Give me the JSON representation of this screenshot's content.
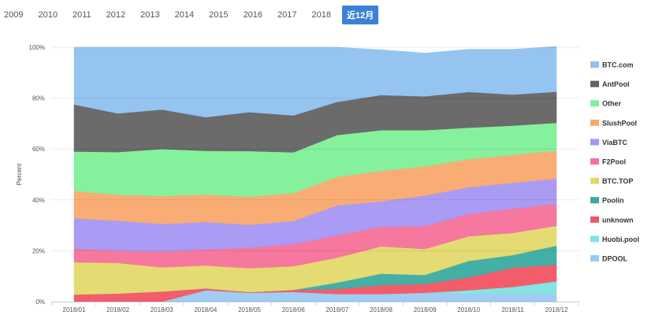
{
  "year_tabs": [
    "2009",
    "2010",
    "2011",
    "2012",
    "2013",
    "2014",
    "2015",
    "2016",
    "2017",
    "2018",
    "近12月"
  ],
  "active_tab": "近12月",
  "chart_data": {
    "type": "area",
    "stacked": true,
    "title": "",
    "xlabel": "",
    "ylabel": "Percent",
    "ylim": [
      0,
      100
    ],
    "yticks": [
      "0%",
      "20%",
      "40%",
      "60%",
      "80%",
      "100%"
    ],
    "categories": [
      "2018/01",
      "2018/02",
      "2018/03",
      "2018/04",
      "2018/05",
      "2018/06",
      "2018/07",
      "2018/08",
      "2018/09",
      "2018/10",
      "2018/11",
      "2018/12"
    ],
    "legend_position": "right",
    "series": [
      {
        "name": "BTC.com",
        "color": "#90c1f0",
        "values": [
          22.5,
          26.0,
          24.5,
          27.5,
          25.5,
          26.8,
          21.5,
          17.8,
          17.0,
          16.8,
          17.8,
          17.8
        ]
      },
      {
        "name": "AntPool",
        "color": "#636363",
        "values": [
          18.5,
          15.2,
          15.5,
          13.2,
          15.3,
          14.5,
          13.0,
          13.8,
          13.3,
          14.0,
          12.2,
          12.2
        ]
      },
      {
        "name": "Other",
        "color": "#7ef098",
        "values": [
          15.5,
          16.8,
          18.5,
          17.2,
          18.0,
          16.0,
          16.5,
          16.0,
          14.2,
          12.4,
          11.5,
          11.0
        ]
      },
      {
        "name": "SlushPool",
        "color": "#f9a96e",
        "values": [
          10.7,
          10.2,
          11.0,
          10.8,
          11.0,
          11.0,
          11.2,
          12.0,
          11.5,
          11.0,
          11.0,
          11.0
        ]
      },
      {
        "name": "ViaBTC",
        "color": "#a596f3",
        "values": [
          12.0,
          11.8,
          10.8,
          10.8,
          9.0,
          9.0,
          11.8,
          10.0,
          12.0,
          10.5,
          10.2,
          9.8
        ]
      },
      {
        "name": "F2Pool",
        "color": "#f7719a",
        "values": [
          5.3,
          4.8,
          6.2,
          6.3,
          8.0,
          8.8,
          8.7,
          7.7,
          9.0,
          8.8,
          9.5,
          8.7
        ]
      },
      {
        "name": "BTC.TOP",
        "color": "#e4d96c",
        "values": [
          12.7,
          12.0,
          9.5,
          9.0,
          9.5,
          9.3,
          9.8,
          10.7,
          10.2,
          9.7,
          8.7,
          7.8
        ]
      },
      {
        "name": "Poolin",
        "color": "#3aaba0",
        "values": [
          0,
          0,
          0,
          0,
          0,
          0,
          2.5,
          4.5,
          3.5,
          6.5,
          5.0,
          7.5
        ]
      },
      {
        "name": "unknown",
        "color": "#f25463",
        "values": [
          2.8,
          3.2,
          4.0,
          0.7,
          0.2,
          0.8,
          2.0,
          3.5,
          3.5,
          5.0,
          7.5,
          6.5
        ]
      },
      {
        "name": "Huobi.pool",
        "color": "#7de3e3",
        "values": [
          0,
          0,
          0,
          0,
          0,
          0,
          0,
          0,
          0,
          1.5,
          2.8,
          5.0
        ]
      },
      {
        "name": "DPOOL",
        "color": "#9cc9f2",
        "values": [
          0,
          0,
          0,
          4.5,
          3.5,
          3.8,
          3.0,
          3.0,
          3.5,
          3.0,
          3.0,
          3.0
        ]
      }
    ]
  }
}
